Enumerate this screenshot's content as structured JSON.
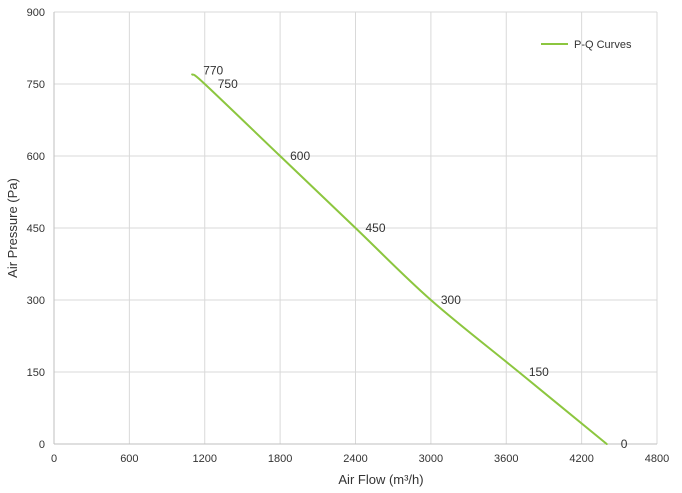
{
  "chart_data": {
    "type": "line",
    "xlabel": "Air Flow (m³/h)",
    "ylabel": "Air Pressure (Pa)",
    "xlim": [
      0,
      4800
    ],
    "ylim": [
      0,
      900
    ],
    "x_ticks": [
      0,
      600,
      1200,
      1800,
      2400,
      3000,
      3600,
      4200,
      4800
    ],
    "y_ticks": [
      0,
      150,
      300,
      450,
      600,
      750,
      900
    ],
    "grid": true,
    "legend_position": "top-right",
    "series": [
      {
        "name": "P-Q Curves",
        "color": "#8cc63f",
        "x": [
          1100,
          1200,
          1800,
          2400,
          3000,
          3700,
          4400
        ],
        "y": [
          770,
          750,
          600,
          450,
          300,
          150,
          0
        ]
      }
    ],
    "data_labels": [
      "770",
      "750",
      "600",
      "450",
      "300",
      "150",
      "0"
    ]
  }
}
